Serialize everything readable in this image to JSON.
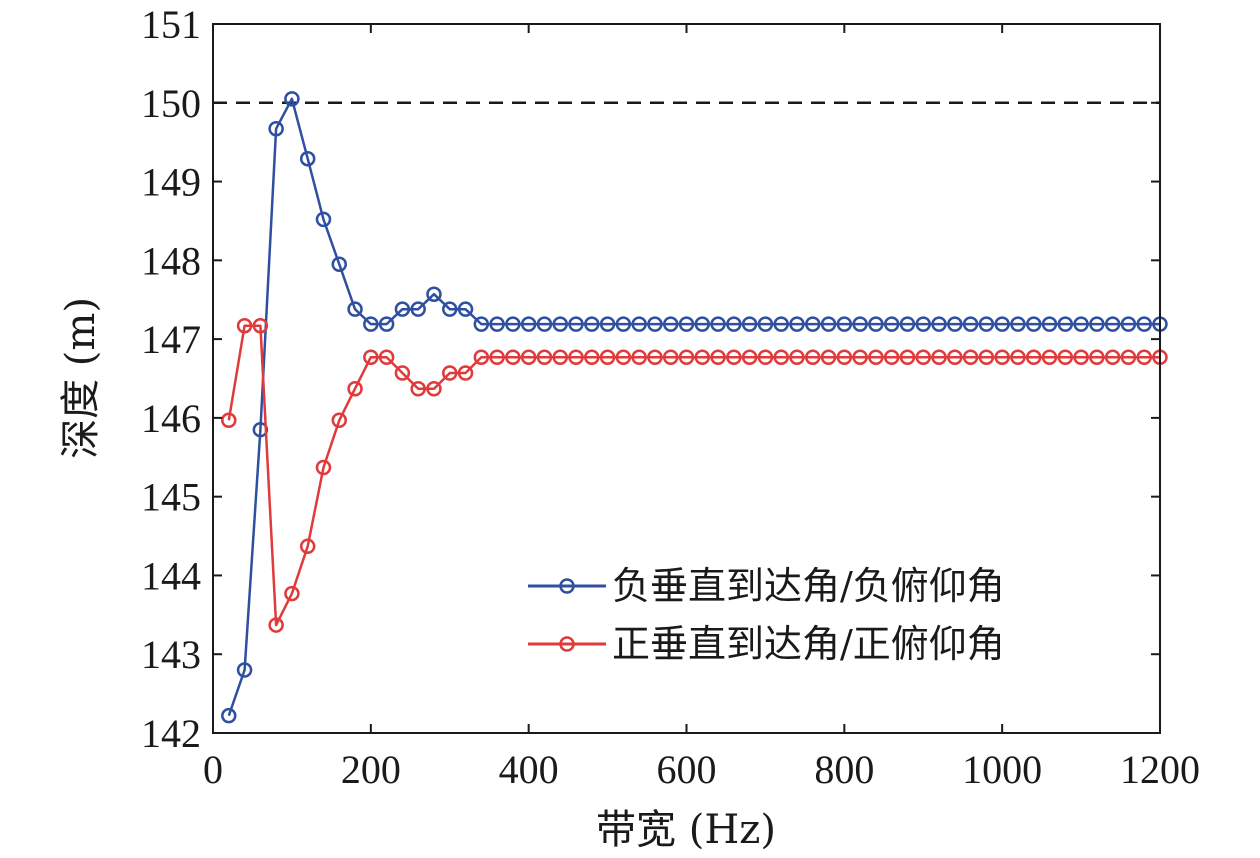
{
  "chart_data": {
    "type": "line",
    "xlabel": "带宽 (Hz)",
    "ylabel": "深度 (m)",
    "xlim": [
      0,
      1200
    ],
    "ylim": [
      142,
      151
    ],
    "xticks": [
      0,
      200,
      400,
      600,
      800,
      1000,
      1200
    ],
    "yticks": [
      142,
      143,
      144,
      145,
      146,
      147,
      148,
      149,
      150,
      151
    ],
    "grid": false,
    "legend_position": "lower-right",
    "reference_line": {
      "y": 150,
      "style": "dashed",
      "color": "#1a1a1a"
    },
    "series": [
      {
        "name": "负垂直到达角/负俯仰角",
        "color": "#2f4fa0",
        "marker": "circle",
        "x": [
          20,
          40,
          60,
          80,
          100,
          120,
          140,
          160,
          180,
          200,
          220,
          240,
          260,
          280,
          300,
          320,
          340,
          360,
          380,
          400,
          420,
          440,
          460,
          480,
          500,
          520,
          540,
          560,
          580,
          600,
          620,
          640,
          660,
          680,
          700,
          720,
          740,
          760,
          780,
          800,
          820,
          840,
          860,
          880,
          900,
          920,
          940,
          960,
          980,
          1000,
          1020,
          1040,
          1060,
          1080,
          1100,
          1120,
          1140,
          1160,
          1180,
          1200
        ],
        "y": [
          142.22,
          142.8,
          145.85,
          149.67,
          150.05,
          149.29,
          148.52,
          147.95,
          147.38,
          147.19,
          147.19,
          147.38,
          147.38,
          147.57,
          147.38,
          147.38,
          147.19,
          147.19,
          147.19,
          147.19,
          147.19,
          147.19,
          147.19,
          147.19,
          147.19,
          147.19,
          147.19,
          147.19,
          147.19,
          147.19,
          147.19,
          147.19,
          147.19,
          147.19,
          147.19,
          147.19,
          147.19,
          147.19,
          147.19,
          147.19,
          147.19,
          147.19,
          147.19,
          147.19,
          147.19,
          147.19,
          147.19,
          147.19,
          147.19,
          147.19,
          147.19,
          147.19,
          147.19,
          147.19,
          147.19,
          147.19,
          147.19,
          147.19,
          147.19,
          147.19
        ]
      },
      {
        "name": "正垂直到达角/正俯仰角",
        "color": "#e03a3a",
        "marker": "circle",
        "x": [
          20,
          40,
          60,
          80,
          100,
          120,
          140,
          160,
          180,
          200,
          220,
          240,
          260,
          280,
          300,
          320,
          340,
          360,
          380,
          400,
          420,
          440,
          460,
          480,
          500,
          520,
          540,
          560,
          580,
          600,
          620,
          640,
          660,
          680,
          700,
          720,
          740,
          760,
          780,
          800,
          820,
          840,
          860,
          880,
          900,
          920,
          940,
          960,
          980,
          1000,
          1020,
          1040,
          1060,
          1080,
          1100,
          1120,
          1140,
          1160,
          1180,
          1200
        ],
        "y": [
          145.97,
          147.17,
          147.17,
          143.37,
          143.77,
          144.37,
          145.37,
          145.97,
          146.37,
          146.77,
          146.77,
          146.57,
          146.37,
          146.37,
          146.57,
          146.57,
          146.77,
          146.77,
          146.77,
          146.77,
          146.77,
          146.77,
          146.77,
          146.77,
          146.77,
          146.77,
          146.77,
          146.77,
          146.77,
          146.77,
          146.77,
          146.77,
          146.77,
          146.77,
          146.77,
          146.77,
          146.77,
          146.77,
          146.77,
          146.77,
          146.77,
          146.77,
          146.77,
          146.77,
          146.77,
          146.77,
          146.77,
          146.77,
          146.77,
          146.77,
          146.77,
          146.77,
          146.77,
          146.77,
          146.77,
          146.77,
          146.77,
          146.77,
          146.77,
          146.77
        ]
      }
    ]
  }
}
